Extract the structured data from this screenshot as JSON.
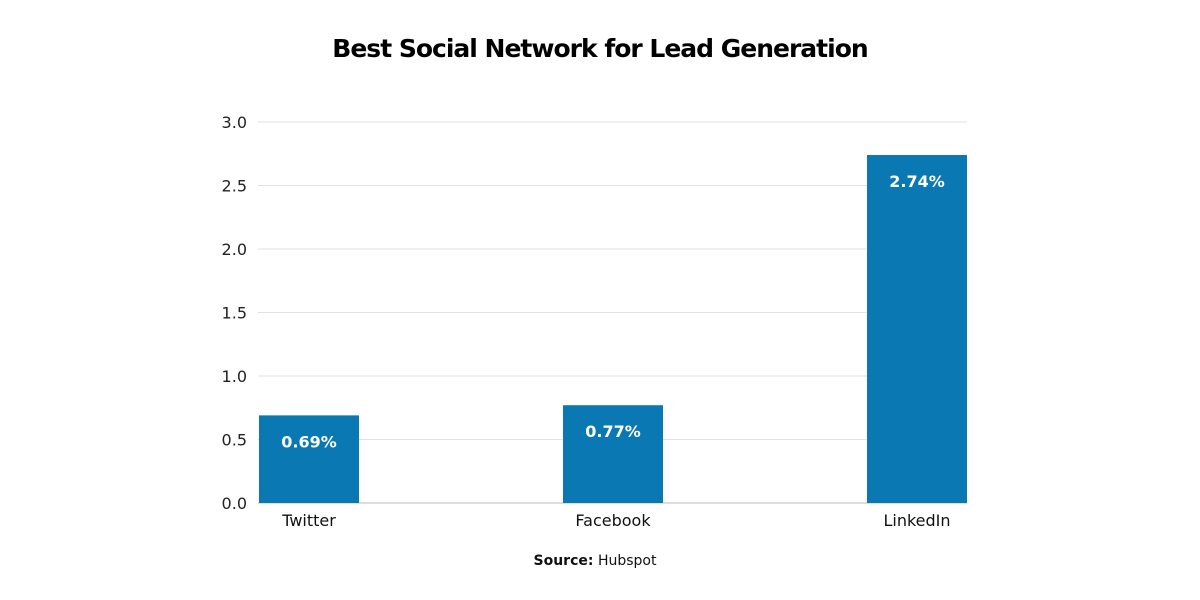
{
  "chart_data": {
    "type": "bar",
    "title": "Best Social Network for Lead Generation",
    "categories": [
      "Twitter",
      "Facebook",
      "LinkedIn"
    ],
    "values": [
      0.69,
      0.77,
      2.74
    ],
    "data_labels": [
      "0.69%",
      "0.77%",
      "2.74%"
    ],
    "ylim": [
      0,
      3.0
    ],
    "yticks": [
      "0.0",
      "0.5",
      "1.0",
      "1.5",
      "2.0",
      "2.5",
      "3.0"
    ],
    "xlabel": "",
    "ylabel": "",
    "grid": true,
    "bar_color": "#0a79b3",
    "label_color": "#ffffff"
  },
  "source": {
    "label": "Source:",
    "value": "Hubspot"
  }
}
